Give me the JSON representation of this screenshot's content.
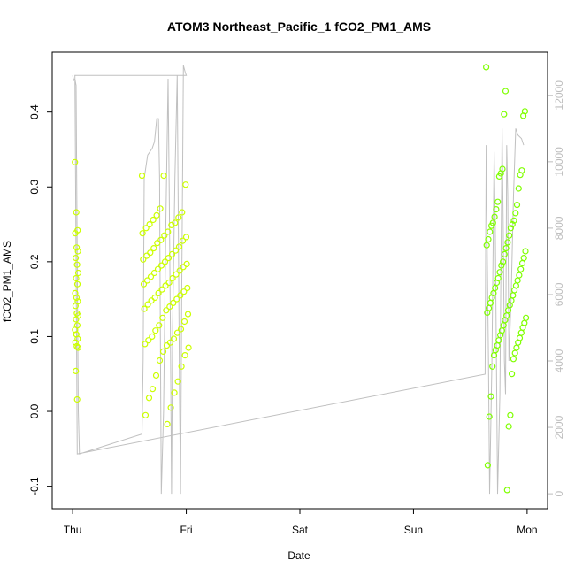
{
  "chart_data": {
    "type": "scatter",
    "title": "ATOM3 Northeast_Pacific_1 fCO2_PM1_AMS",
    "xlabel": "Date",
    "ylabel": "fCO2_PM1_AMS",
    "x_ticks": [
      "Thu",
      "Fri",
      "Sat",
      "Sun",
      "Mon"
    ],
    "xlim_days": [
      -0.18,
      4.18
    ],
    "y_ticks": [
      "-0.1",
      "0.0",
      "0.1",
      "0.2",
      "0.3",
      "0.4"
    ],
    "ylim": [
      -0.13,
      0.48
    ],
    "y2_ticks": [
      "0",
      "2000",
      "4000",
      "6000",
      "8000",
      "10000",
      "12000"
    ],
    "y2lim": [
      -450,
      13300
    ],
    "grid": false,
    "legend": "none",
    "colors": {
      "left_points": "#ccff00",
      "right_points": "#7fff00",
      "line": "#c0c0c0",
      "right_axis": "#bdbdbd"
    },
    "scatter_series": [
      {
        "day_start": 0.02,
        "day_end": 0.05,
        "y": [
          0.333,
          0.266,
          0.242,
          0.238,
          0.219,
          0.214,
          0.205,
          0.196,
          0.185,
          0.178,
          0.17,
          0.158,
          0.152,
          0.147,
          0.141,
          0.131,
          0.128,
          0.123,
          0.115,
          0.109,
          0.103,
          0.097,
          0.092,
          0.087,
          0.085,
          0.054,
          0.016
        ]
      },
      {
        "day_start": 0.61,
        "day_end": 1.02,
        "y": [
          0.315,
          0.315,
          0.303,
          0.271,
          0.266,
          0.262,
          0.259,
          0.256,
          0.252,
          0.25,
          0.249,
          0.245,
          0.24,
          0.238,
          0.235,
          0.233,
          0.229,
          0.228,
          0.225,
          0.22,
          0.218,
          0.215,
          0.212,
          0.21,
          0.208,
          0.205,
          0.203,
          0.2,
          0.197,
          0.195,
          0.193,
          0.19,
          0.188,
          0.185,
          0.183,
          0.18,
          0.178,
          0.175,
          0.172,
          0.17,
          0.168,
          0.165,
          0.163,
          0.16,
          0.158,
          0.155,
          0.152,
          0.15,
          0.148,
          0.145,
          0.143,
          0.14,
          0.137,
          0.135,
          0.13,
          0.125,
          0.12,
          0.115,
          0.11,
          0.108,
          0.105,
          0.1,
          0.097,
          0.095,
          0.092,
          0.09,
          0.088,
          0.085,
          0.08,
          0.075,
          0.068,
          0.06,
          0.048,
          0.04,
          0.03,
          0.025,
          0.018,
          0.005,
          -0.005,
          -0.017
        ]
      },
      {
        "day_start": 3.64,
        "day_end": 3.99,
        "y": [
          0.46,
          0.428,
          0.401,
          0.397,
          0.395,
          0.324,
          0.322,
          0.318,
          0.316,
          0.314,
          0.298,
          0.28,
          0.276,
          0.27,
          0.265,
          0.26,
          0.255,
          0.252,
          0.25,
          0.248,
          0.245,
          0.24,
          0.235,
          0.23,
          0.226,
          0.222,
          0.218,
          0.214,
          0.21,
          0.205,
          0.2,
          0.198,
          0.195,
          0.19,
          0.186,
          0.182,
          0.178,
          0.175,
          0.172,
          0.168,
          0.165,
          0.162,
          0.158,
          0.155,
          0.152,
          0.148,
          0.145,
          0.142,
          0.138,
          0.135,
          0.132,
          0.128,
          0.125,
          0.122,
          0.118,
          0.115,
          0.112,
          0.108,
          0.105,
          0.102,
          0.098,
          0.095,
          0.092,
          0.088,
          0.085,
          0.082,
          0.078,
          0.075,
          0.07,
          0.06,
          0.05,
          0.02,
          -0.005,
          -0.007,
          -0.02,
          -0.072,
          -0.105
        ]
      }
    ],
    "altitude_line": {
      "series_points": [
        [
          0.0,
          12600
        ],
        [
          0.01,
          12450
        ],
        [
          0.02,
          12500
        ],
        [
          0.025,
          12400
        ],
        [
          0.03,
          12300
        ],
        [
          0.04,
          7000
        ],
        [
          0.05,
          2500
        ],
        [
          0.06,
          1200
        ],
        [
          0.61,
          1800
        ],
        [
          0.62,
          4000
        ],
        [
          0.63,
          9500
        ],
        [
          0.66,
          10200
        ],
        [
          0.7,
          10400
        ],
        [
          0.72,
          10600
        ],
        [
          0.74,
          11300
        ],
        [
          0.755,
          11300
        ],
        [
          0.765,
          9500
        ],
        [
          0.77,
          6000
        ],
        [
          0.78,
          0
        ],
        [
          0.8,
          2500
        ],
        [
          0.82,
          8000
        ],
        [
          0.84,
          12500
        ],
        [
          0.85,
          9000
        ],
        [
          0.86,
          5000
        ],
        [
          0.87,
          0
        ],
        [
          0.88,
          5000
        ],
        [
          0.9,
          9500
        ],
        [
          0.92,
          12600
        ],
        [
          0.93,
          8000
        ],
        [
          0.94,
          3000
        ],
        [
          0.95,
          0
        ],
        [
          0.96,
          6000
        ],
        [
          0.975,
          12900
        ],
        [
          0.99,
          12700
        ],
        [
          1.0,
          12600
        ],
        [
          0.02,
          12600
        ],
        [
          0.04,
          1200
        ],
        [
          3.63,
          3600
        ],
        [
          3.64,
          10500
        ],
        [
          3.65,
          7000
        ],
        [
          3.66,
          4000
        ],
        [
          3.67,
          0
        ],
        [
          3.69,
          4000
        ],
        [
          3.71,
          10300
        ],
        [
          3.72,
          8000
        ],
        [
          3.73,
          4000
        ],
        [
          3.74,
          0
        ],
        [
          3.76,
          3000
        ],
        [
          3.78,
          11000
        ],
        [
          3.79,
          8000
        ],
        [
          3.8,
          4000
        ],
        [
          3.81,
          3000
        ],
        [
          3.82,
          10500
        ],
        [
          3.83,
          9000
        ],
        [
          3.84,
          4000
        ],
        [
          3.86,
          6000
        ],
        [
          3.88,
          9000
        ],
        [
          3.9,
          11000
        ],
        [
          3.92,
          10800
        ],
        [
          3.95,
          10700
        ],
        [
          3.97,
          10500
        ]
      ]
    }
  }
}
